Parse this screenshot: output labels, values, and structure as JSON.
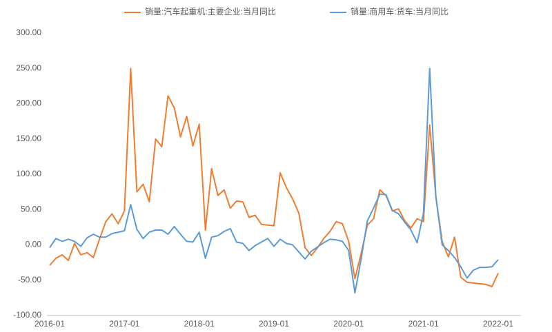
{
  "chart_data": {
    "type": "line",
    "categories": [
      "2016-01",
      null,
      null,
      null,
      null,
      null,
      null,
      null,
      null,
      null,
      null,
      null,
      "2017-01",
      null,
      null,
      null,
      null,
      null,
      null,
      null,
      null,
      null,
      null,
      null,
      "2018-01",
      null,
      null,
      null,
      null,
      null,
      null,
      null,
      null,
      null,
      null,
      null,
      "2019-01",
      null,
      null,
      null,
      null,
      null,
      null,
      null,
      null,
      null,
      null,
      null,
      "2020-01",
      null,
      null,
      null,
      null,
      null,
      null,
      null,
      null,
      null,
      null,
      null,
      "2021-01",
      null,
      null,
      null,
      null,
      null,
      null,
      null,
      null,
      null,
      null,
      null,
      "2022-01"
    ],
    "series": [
      {
        "name": "销量:汽车起重机:主要企业:当月同比",
        "color": "#ed7d31",
        "values": [
          -29,
          -19,
          -14,
          -22,
          2,
          -14,
          -11,
          -18,
          8,
          33,
          44,
          30,
          48,
          250,
          75,
          86,
          61,
          150,
          139,
          211,
          194,
          153,
          182,
          140,
          171,
          21,
          108,
          70,
          78,
          52,
          62,
          61,
          39,
          42,
          29,
          28,
          27,
          102,
          81,
          65,
          45,
          -4,
          -15,
          -4,
          9,
          19,
          33,
          30,
          5,
          -48,
          -12,
          28,
          37,
          78,
          70,
          48,
          51,
          34,
          24,
          37,
          33,
          170,
          68,
          5,
          -17,
          11,
          -46,
          -53,
          -54,
          -55,
          -56,
          -59,
          -40
        ]
      },
      {
        "name": "销量:商用车:货车:当月同比",
        "color": "#5b9bd5",
        "values": [
          -4,
          9,
          5,
          8,
          5,
          -2,
          10,
          15,
          11,
          11,
          16,
          18,
          20,
          57,
          22,
          9,
          18,
          21,
          21,
          15,
          26,
          15,
          5,
          4,
          18,
          -19,
          11,
          13,
          19,
          23,
          4,
          2,
          -8,
          -1,
          4,
          9,
          -2,
          8,
          2,
          0,
          -10,
          -20,
          -9,
          -3,
          3,
          8,
          7,
          5,
          -8,
          -68,
          -20,
          34,
          52,
          72,
          71,
          49,
          44,
          32,
          21,
          3,
          45,
          250,
          68,
          0,
          -8,
          -18,
          -31,
          -47,
          -36,
          -32,
          -32,
          -31,
          -21
        ]
      }
    ],
    "ylim": [
      -100,
      300
    ],
    "yticks": [
      {
        "value": -100,
        "label": "-100.00"
      },
      {
        "value": -50,
        "label": "-50.00"
      },
      {
        "value": 0,
        "label": "0.00"
      },
      {
        "value": 50,
        "label": "50.00"
      },
      {
        "value": 100,
        "label": "100.00"
      },
      {
        "value": 150,
        "label": "150.00"
      },
      {
        "value": 200,
        "label": "200.00"
      },
      {
        "value": 250,
        "label": "250.00"
      },
      {
        "value": 300,
        "label": "300.00"
      }
    ],
    "legend": "top"
  }
}
